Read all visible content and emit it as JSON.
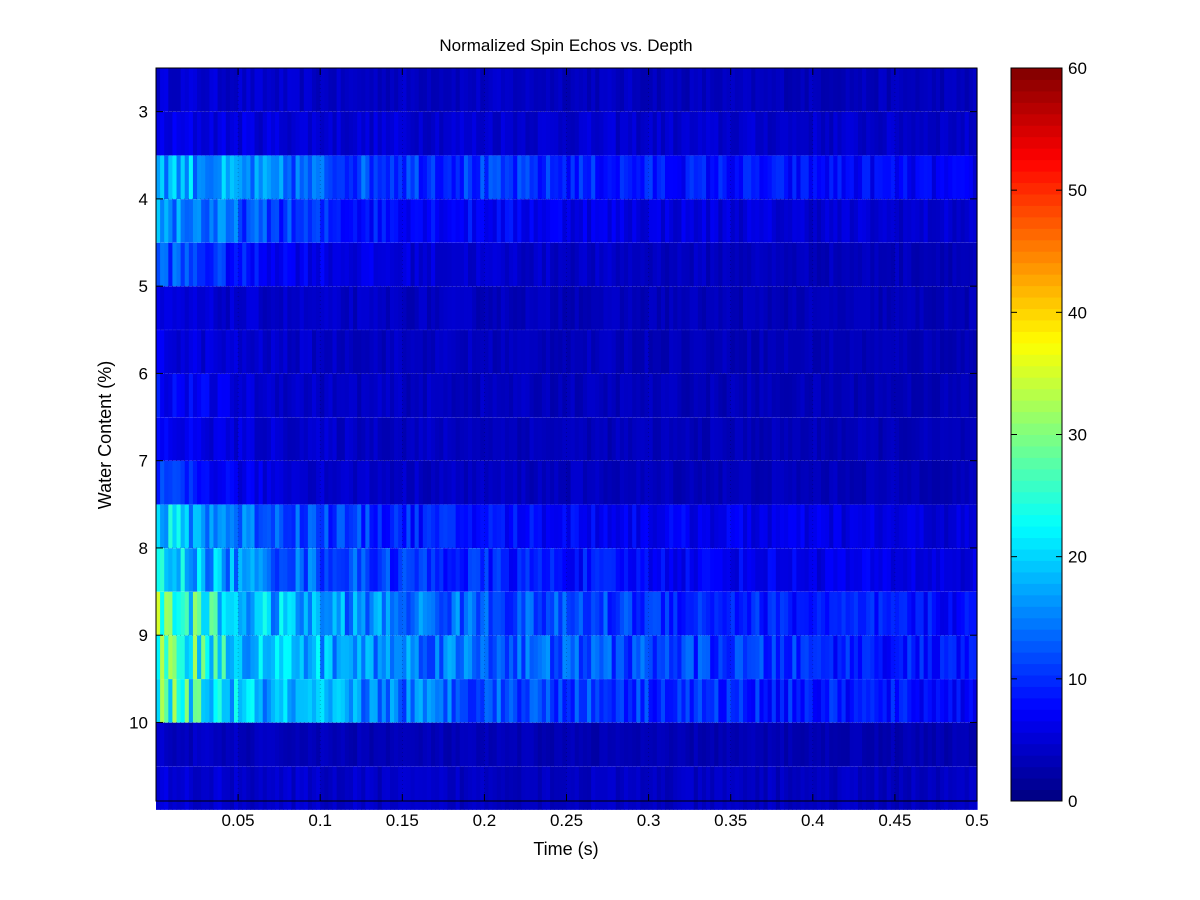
{
  "chart_data": {
    "type": "heatmap",
    "title": "Normalized Spin Echos vs. Depth",
    "xlabel": "Time (s)",
    "ylabel": "Water Content (%)",
    "xlim": [
      0.0,
      0.5
    ],
    "ylim": [
      2.5,
      10.9
    ],
    "x_ticks": [
      "0.05",
      "0.1",
      "0.15",
      "0.2",
      "0.25",
      "0.3",
      "0.35",
      "0.4",
      "0.45",
      "0.5"
    ],
    "x_tick_values": [
      0.05,
      0.1,
      0.15,
      0.2,
      0.25,
      0.3,
      0.35,
      0.4,
      0.45,
      0.5
    ],
    "y_ticks": [
      "3",
      "4",
      "5",
      "6",
      "7",
      "8",
      "9",
      "10"
    ],
    "y_tick_values": [
      3,
      4,
      5,
      6,
      7,
      8,
      9,
      10
    ],
    "colorbar": {
      "ticks": [
        "0",
        "10",
        "20",
        "30",
        "40",
        "50",
        "60"
      ],
      "tick_values": [
        0,
        10,
        20,
        30,
        40,
        50,
        60
      ],
      "range": [
        0,
        60
      ],
      "colormap": "jet"
    },
    "rows": [
      {
        "y": 2.75,
        "values": [
          5,
          4.5,
          4,
          4,
          4,
          3.8,
          3.6,
          3.5,
          3.5,
          3.5
        ]
      },
      {
        "y": 3.25,
        "values": [
          6,
          5.5,
          5,
          5,
          4.8,
          4.6,
          4.5,
          4.5,
          4.4,
          4.3
        ]
      },
      {
        "y": 3.75,
        "values": [
          19,
          15,
          12,
          11,
          10,
          9,
          8.5,
          8,
          7.5,
          6
        ]
      },
      {
        "y": 4.25,
        "values": [
          17,
          12,
          9,
          8,
          7,
          6,
          5.5,
          5,
          4.8,
          4.5
        ]
      },
      {
        "y": 4.75,
        "values": [
          13,
          8,
          6,
          5,
          4.5,
          4,
          3.8,
          3.6,
          3.5,
          3.5
        ]
      },
      {
        "y": 5.25,
        "values": [
          5,
          4.5,
          4,
          3.8,
          3.6,
          3.5,
          3.4,
          3.3,
          3.3,
          3.2
        ]
      },
      {
        "y": 5.75,
        "values": [
          6,
          4.5,
          4,
          3.8,
          3.6,
          3.5,
          3.4,
          3.3,
          3.3,
          3.2
        ]
      },
      {
        "y": 6.25,
        "values": [
          8,
          5,
          4,
          3.8,
          3.6,
          3.5,
          3.4,
          3.3,
          3.3,
          3.2
        ]
      },
      {
        "y": 6.75,
        "values": [
          7,
          5,
          4.2,
          3.9,
          3.7,
          3.5,
          3.4,
          3.3,
          3.3,
          3.2
        ]
      },
      {
        "y": 7.25,
        "values": [
          10,
          6,
          4.5,
          4,
          3.8,
          3.6,
          3.5,
          3.4,
          3.4,
          3.3
        ]
      },
      {
        "y": 7.75,
        "values": [
          20,
          14,
          11,
          9,
          8,
          7,
          6.5,
          6,
          5.5,
          5
        ]
      },
      {
        "y": 8.25,
        "values": [
          21,
          15,
          12,
          10,
          9,
          8,
          7,
          6.5,
          6,
          5.5
        ]
      },
      {
        "y": 8.75,
        "values": [
          28,
          19,
          16,
          14,
          12,
          11,
          10,
          9,
          8.5,
          7.5
        ]
      },
      {
        "y": 9.25,
        "values": [
          29,
          20,
          17,
          15,
          13,
          12,
          11,
          10,
          9,
          8
        ]
      },
      {
        "y": 9.75,
        "values": [
          27,
          18,
          16,
          14,
          12,
          11,
          10,
          9,
          8.5,
          7.5
        ]
      },
      {
        "y": 10.25,
        "values": [
          4,
          3.5,
          3.3,
          3.2,
          3.1,
          3,
          3,
          3,
          3,
          3
        ]
      },
      {
        "y": 10.75,
        "values": [
          5,
          4.5,
          4.2,
          4,
          4,
          3.9,
          3.8,
          3.8,
          3.7,
          3.7
        ]
      }
    ]
  }
}
